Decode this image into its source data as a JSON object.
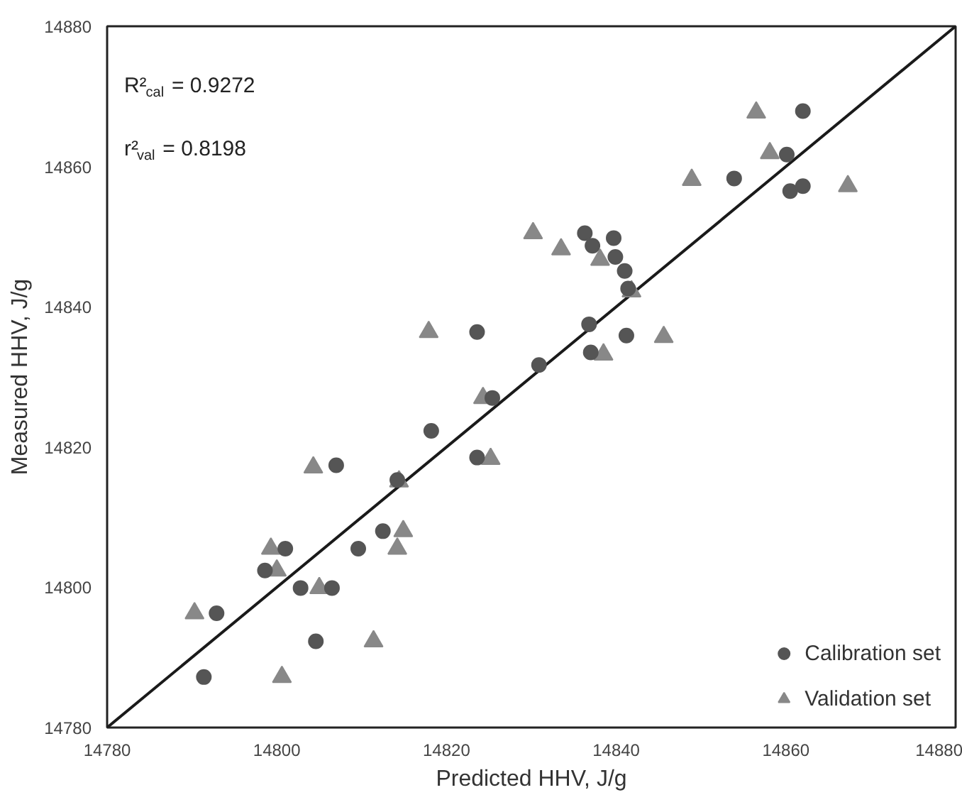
{
  "chart_data": {
    "type": "scatter",
    "xlabel": "Predicted HHV, J/g",
    "ylabel": "Measured HHV, J/g",
    "xlim": [
      14780,
      14880
    ],
    "ylim": [
      14780,
      14880
    ],
    "xticks": [
      14780,
      14800,
      14820,
      14840,
      14860,
      14880
    ],
    "yticks": [
      14780,
      14800,
      14820,
      14840,
      14860,
      14880
    ],
    "grid": false,
    "legend": "bottom right",
    "annotations": [
      "R²$_{cal}$ = 0.9272",
      "r²$_{val}$ = 0.8198"
    ],
    "series": [
      {
        "name": "Calibration set",
        "color": "#555555",
        "marker": "circle",
        "x": [
          14798.6,
          14801.0,
          14792.9,
          14791.4,
          14802.8,
          14806.5,
          14804.6,
          14809.6,
          14812.5,
          14836.3,
          14837.2,
          14839.7,
          14839.9,
          14841.0,
          14841.4,
          14823.6,
          14836.8,
          14841.2,
          14837.0,
          14830.9,
          14825.4,
          14818.2,
          14823.6,
          14807.0,
          14814.2,
          14862.0,
          14860.1,
          14853.9,
          14860.5,
          14862.0
        ],
        "values": [
          14802.4,
          14805.5,
          14796.3,
          14787.2,
          14799.9,
          14799.9,
          14792.3,
          14805.5,
          14808.0,
          14850.5,
          14848.7,
          14849.8,
          14847.1,
          14845.1,
          14842.6,
          14836.4,
          14837.5,
          14835.9,
          14833.5,
          14831.7,
          14827.0,
          14822.3,
          14818.5,
          14817.4,
          14815.3,
          14867.9,
          14861.7,
          14858.3,
          14856.5,
          14857.2
        ]
      },
      {
        "name": "Validation set",
        "color": "#888888",
        "marker": "triangle",
        "x": [
          14800.0,
          14799.3,
          14790.3,
          14800.6,
          14805.0,
          14811.4,
          14814.2,
          14814.9,
          14830.2,
          14833.5,
          14838.1,
          14841.8,
          14817.9,
          14845.6,
          14838.5,
          14824.3,
          14825.2,
          14804.3,
          14814.4,
          14856.5,
          14858.1,
          14848.9,
          14867.3
        ],
        "values": [
          14802.4,
          14805.5,
          14796.3,
          14787.2,
          14799.9,
          14792.3,
          14805.5,
          14808.0,
          14850.5,
          14848.2,
          14846.7,
          14842.2,
          14836.4,
          14835.7,
          14833.2,
          14827.0,
          14818.3,
          14817.1,
          14815.1,
          14867.7,
          14861.9,
          14858.1,
          14857.2
        ]
      },
      {
        "type": "line",
        "color": "#1a1a1a",
        "marker": "none",
        "line_style": "solid",
        "x": [
          14780,
          14880
        ],
        "values": [
          14780,
          14880
        ]
      }
    ]
  }
}
